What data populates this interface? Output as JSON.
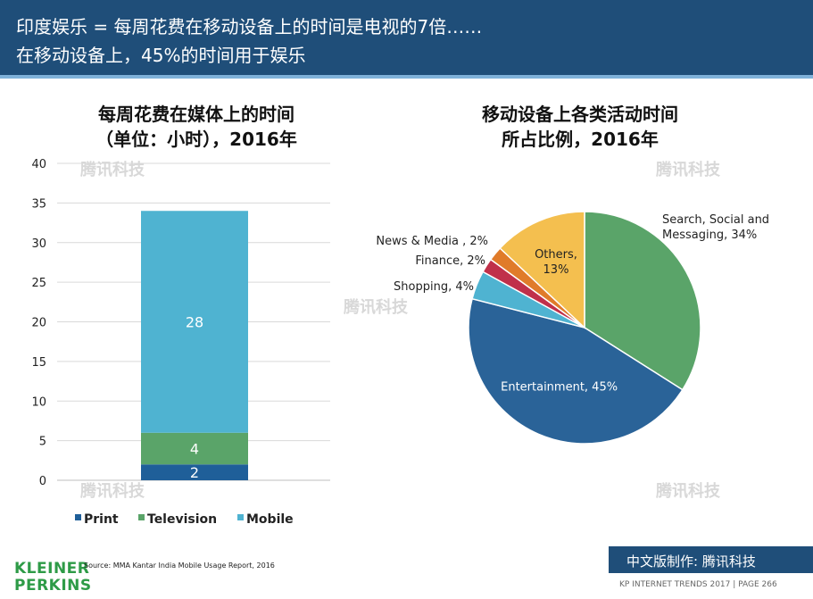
{
  "header": {
    "line1": "印度娱乐 = 每周花费在移动设备上的时间是电视的7倍……",
    "line2": "在移动设备上，45%的时间用于娱乐"
  },
  "watermark": "腾讯科技",
  "chart_data": [
    {
      "type": "bar",
      "title_line1": "每周花费在媒体上的时间",
      "title_line2": "（单位：小时），2016年",
      "ylim": [
        0,
        40
      ],
      "yticks": [
        "0",
        "5",
        "10",
        "15",
        "20",
        "25",
        "30",
        "35",
        "40"
      ],
      "stacked": true,
      "series": [
        {
          "name": "Print",
          "values": [
            2
          ],
          "label": "2",
          "color": "#1f5f99"
        },
        {
          "name": "Television",
          "values": [
            4
          ],
          "label": "4",
          "color": "#5aa469"
        },
        {
          "name": "Mobile",
          "values": [
            28
          ],
          "label": "28",
          "color": "#4fb3d1"
        }
      ],
      "grid": true,
      "legend": "bottom"
    },
    {
      "type": "pie",
      "title_line1": "移动设备上各类活动时间",
      "title_line2": "所占比例，2016年",
      "slices": [
        {
          "name": "Search, Social and Messaging",
          "value": 34,
          "color": "#5aa469",
          "label_line1": "Search, Social and",
          "label_line2": "Messaging, 34%"
        },
        {
          "name": "Entertainment",
          "value": 45,
          "color": "#2a6398",
          "label_line1": "Entertainment, 45%"
        },
        {
          "name": "Shopping",
          "value": 4,
          "color": "#4fb3d1",
          "label_line1": "Shopping, 4%"
        },
        {
          "name": "Finance",
          "value": 2,
          "color": "#c0304a",
          "label_line1": "Finance, 2%"
        },
        {
          "name": "News & Media",
          "value": 2,
          "color": "#e07b2a",
          "label_line1": "News & Media , 2%"
        },
        {
          "name": "Others",
          "value": 13,
          "color": "#f4bf4f",
          "label_line1": "Others,",
          "label_line2": "13%"
        }
      ]
    }
  ],
  "source": "Source: MMA Kantar India Mobile Usage Report, 2016",
  "logo": {
    "line1": "KLEINER",
    "line2": "PERKINS"
  },
  "banner": "中文版制作: 腾讯科技",
  "footer": "KP INTERNET TRENDS 2017  |  PAGE 266"
}
